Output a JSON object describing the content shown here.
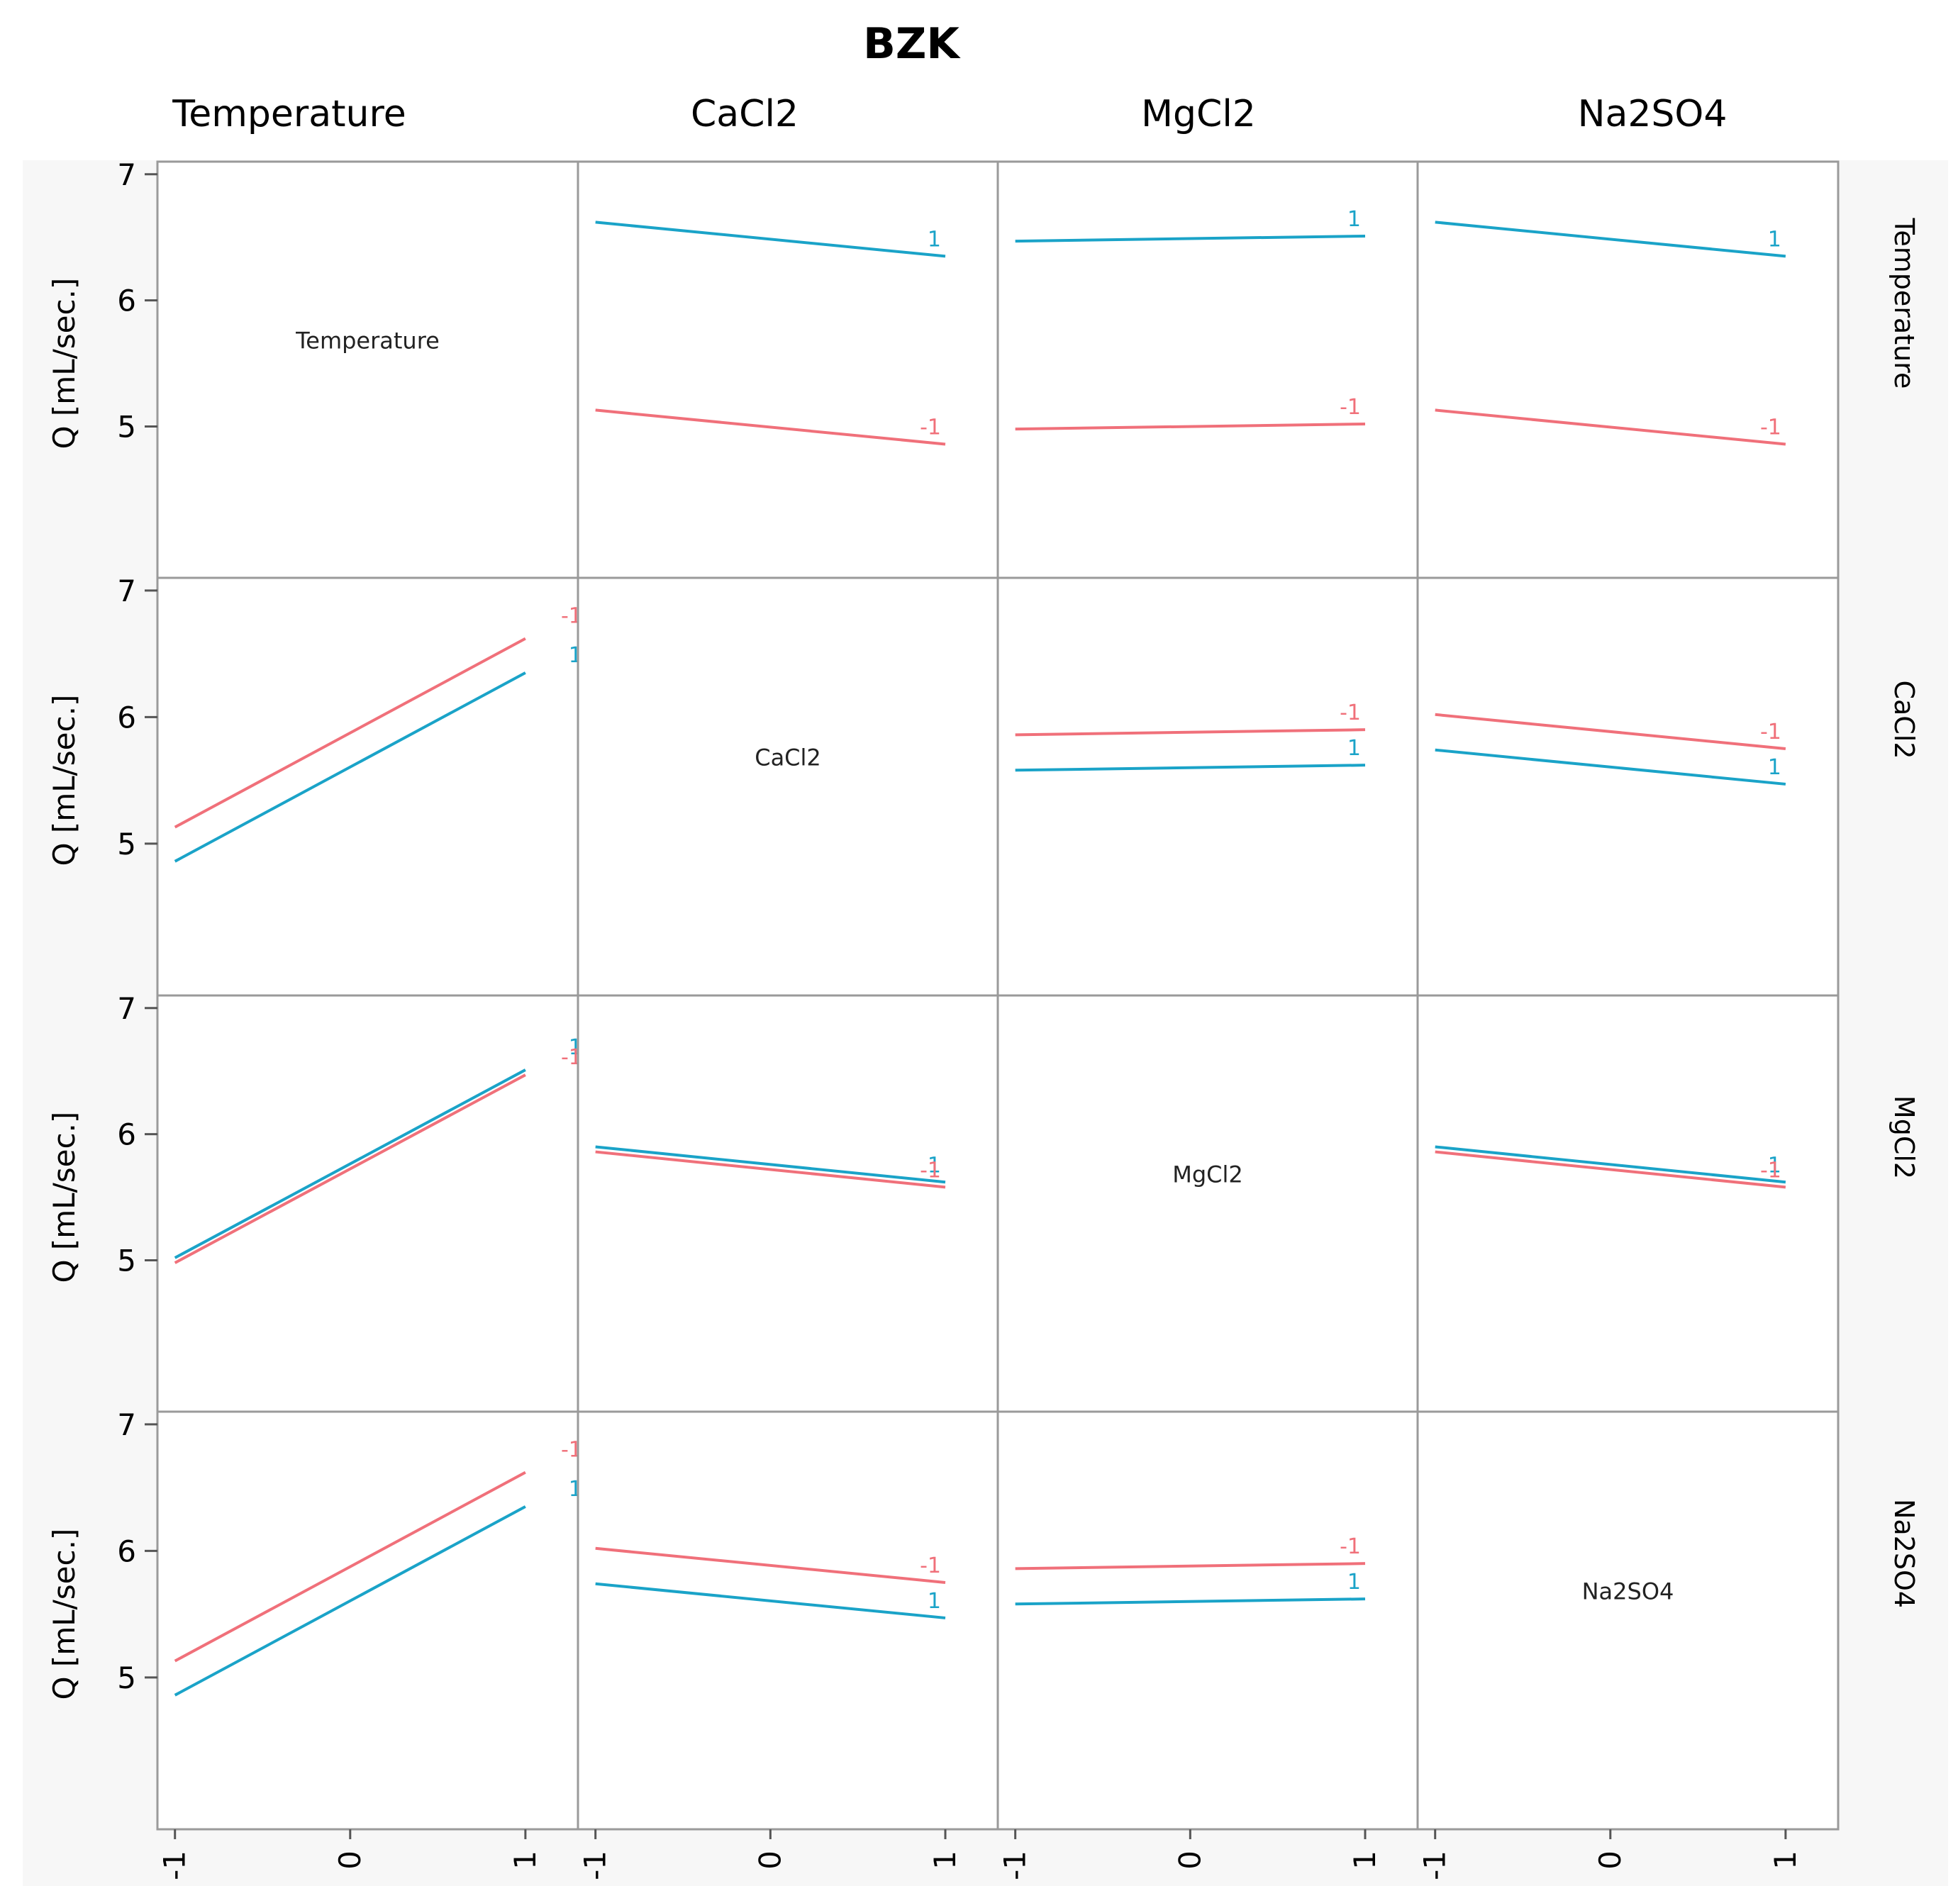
{
  "chart_data": {
    "type": "line",
    "title": "BZK",
    "factors": [
      "Temperature",
      "CaCl2",
      "MgCl2",
      "Na2SO4"
    ],
    "ylabel": "Q [mL/sec.]",
    "ylim": [
      3.8,
      7.1
    ],
    "yticks": [
      "5",
      "6",
      "7"
    ],
    "xlim": [
      -1.1,
      1.3
    ],
    "xticks": [
      "-1",
      "0",
      "1"
    ],
    "colors": {
      "-1": "#f0707a",
      "1": "#1aa3c8"
    },
    "panels": [
      {
        "row": 0,
        "col": 0,
        "diagonal": true,
        "label": "Temperature"
      },
      {
        "row": 0,
        "col": 1,
        "series": [
          {
            "level": "1",
            "x": [
              -1,
              1
            ],
            "y": [
              6.62,
              6.35
            ]
          },
          {
            "level": "-1",
            "x": [
              -1,
              1
            ],
            "y": [
              5.13,
              4.86
            ]
          }
        ]
      },
      {
        "row": 0,
        "col": 2,
        "series": [
          {
            "level": "1",
            "x": [
              -1,
              1
            ],
            "y": [
              6.47,
              6.51
            ]
          },
          {
            "level": "-1",
            "x": [
              -1,
              1
            ],
            "y": [
              4.98,
              5.02
            ]
          }
        ]
      },
      {
        "row": 0,
        "col": 3,
        "series": [
          {
            "level": "1",
            "x": [
              -1,
              1
            ],
            "y": [
              6.62,
              6.35
            ]
          },
          {
            "level": "-1",
            "x": [
              -1,
              1
            ],
            "y": [
              5.13,
              4.86
            ]
          }
        ]
      },
      {
        "row": 1,
        "col": 0,
        "series": [
          {
            "level": "-1",
            "x": [
              -1,
              1
            ],
            "y": [
              5.13,
              6.62
            ]
          },
          {
            "level": "1",
            "x": [
              -1,
              1
            ],
            "y": [
              4.86,
              6.35
            ]
          }
        ]
      },
      {
        "row": 1,
        "col": 1,
        "diagonal": true,
        "label": "CaCl2"
      },
      {
        "row": 1,
        "col": 2,
        "series": [
          {
            "level": "-1",
            "x": [
              -1,
              1
            ],
            "y": [
              5.86,
              5.9
            ]
          },
          {
            "level": "1",
            "x": [
              -1,
              1
            ],
            "y": [
              5.58,
              5.62
            ]
          }
        ]
      },
      {
        "row": 1,
        "col": 3,
        "series": [
          {
            "level": "-1",
            "x": [
              -1,
              1
            ],
            "y": [
              6.02,
              5.75
            ]
          },
          {
            "level": "1",
            "x": [
              -1,
              1
            ],
            "y": [
              5.74,
              5.47
            ]
          }
        ]
      },
      {
        "row": 2,
        "col": 0,
        "series": [
          {
            "level": "1",
            "x": [
              -1,
              1
            ],
            "y": [
              5.02,
              6.51
            ]
          },
          {
            "level": "-1",
            "x": [
              -1,
              1
            ],
            "y": [
              4.98,
              6.47
            ]
          }
        ]
      },
      {
        "row": 2,
        "col": 1,
        "series": [
          {
            "level": "1",
            "x": [
              -1,
              1
            ],
            "y": [
              5.9,
              5.62
            ]
          },
          {
            "level": "-1",
            "x": [
              -1,
              1
            ],
            "y": [
              5.86,
              5.58
            ]
          }
        ]
      },
      {
        "row": 2,
        "col": 2,
        "diagonal": true,
        "label": "MgCl2"
      },
      {
        "row": 2,
        "col": 3,
        "series": [
          {
            "level": "1",
            "x": [
              -1,
              1
            ],
            "y": [
              5.9,
              5.62
            ]
          },
          {
            "level": "-1",
            "x": [
              -1,
              1
            ],
            "y": [
              5.86,
              5.58
            ]
          }
        ]
      },
      {
        "row": 3,
        "col": 0,
        "series": [
          {
            "level": "-1",
            "x": [
              -1,
              1
            ],
            "y": [
              5.13,
              6.62
            ]
          },
          {
            "level": "1",
            "x": [
              -1,
              1
            ],
            "y": [
              4.86,
              6.35
            ]
          }
        ]
      },
      {
        "row": 3,
        "col": 1,
        "series": [
          {
            "level": "-1",
            "x": [
              -1,
              1
            ],
            "y": [
              6.02,
              5.75
            ]
          },
          {
            "level": "1",
            "x": [
              -1,
              1
            ],
            "y": [
              5.74,
              5.47
            ]
          }
        ]
      },
      {
        "row": 3,
        "col": 2,
        "series": [
          {
            "level": "-1",
            "x": [
              -1,
              1
            ],
            "y": [
              5.86,
              5.9
            ]
          },
          {
            "level": "1",
            "x": [
              -1,
              1
            ],
            "y": [
              5.58,
              5.62
            ]
          }
        ]
      },
      {
        "row": 3,
        "col": 3,
        "diagonal": true,
        "label": "Na2SO4"
      }
    ]
  }
}
